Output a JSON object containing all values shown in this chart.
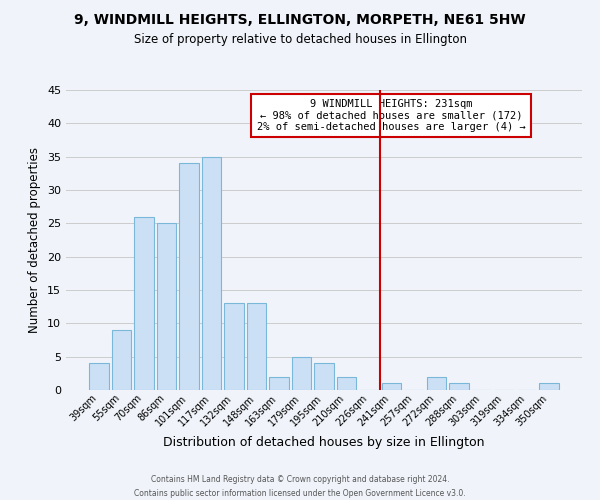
{
  "title": "9, WINDMILL HEIGHTS, ELLINGTON, MORPETH, NE61 5HW",
  "subtitle": "Size of property relative to detached houses in Ellington",
  "xlabel": "Distribution of detached houses by size in Ellington",
  "ylabel": "Number of detached properties",
  "bar_labels": [
    "39sqm",
    "55sqm",
    "70sqm",
    "86sqm",
    "101sqm",
    "117sqm",
    "132sqm",
    "148sqm",
    "163sqm",
    "179sqm",
    "195sqm",
    "210sqm",
    "226sqm",
    "241sqm",
    "257sqm",
    "272sqm",
    "288sqm",
    "303sqm",
    "319sqm",
    "334sqm",
    "350sqm"
  ],
  "bar_values": [
    4,
    9,
    26,
    25,
    34,
    35,
    13,
    13,
    2,
    5,
    4,
    2,
    0,
    1,
    0,
    2,
    1,
    0,
    0,
    0,
    1
  ],
  "bar_color": "#cce0f5",
  "bar_edge_color": "#7ab8d9",
  "vline_x": 12.5,
  "vline_color": "#cc0000",
  "ylim": [
    0,
    45
  ],
  "yticks": [
    0,
    5,
    10,
    15,
    20,
    25,
    30,
    35,
    40,
    45
  ],
  "annotation_title": "9 WINDMILL HEIGHTS: 231sqm",
  "annotation_line1": "← 98% of detached houses are smaller (172)",
  "annotation_line2": "2% of semi-detached houses are larger (4) →",
  "annotation_box_color": "#ffffff",
  "annotation_box_edge": "#cc0000",
  "footer_line1": "Contains HM Land Registry data © Crown copyright and database right 2024.",
  "footer_line2": "Contains public sector information licensed under the Open Government Licence v3.0.",
  "grid_color": "#cccccc",
  "background_color": "#f0f4fa"
}
